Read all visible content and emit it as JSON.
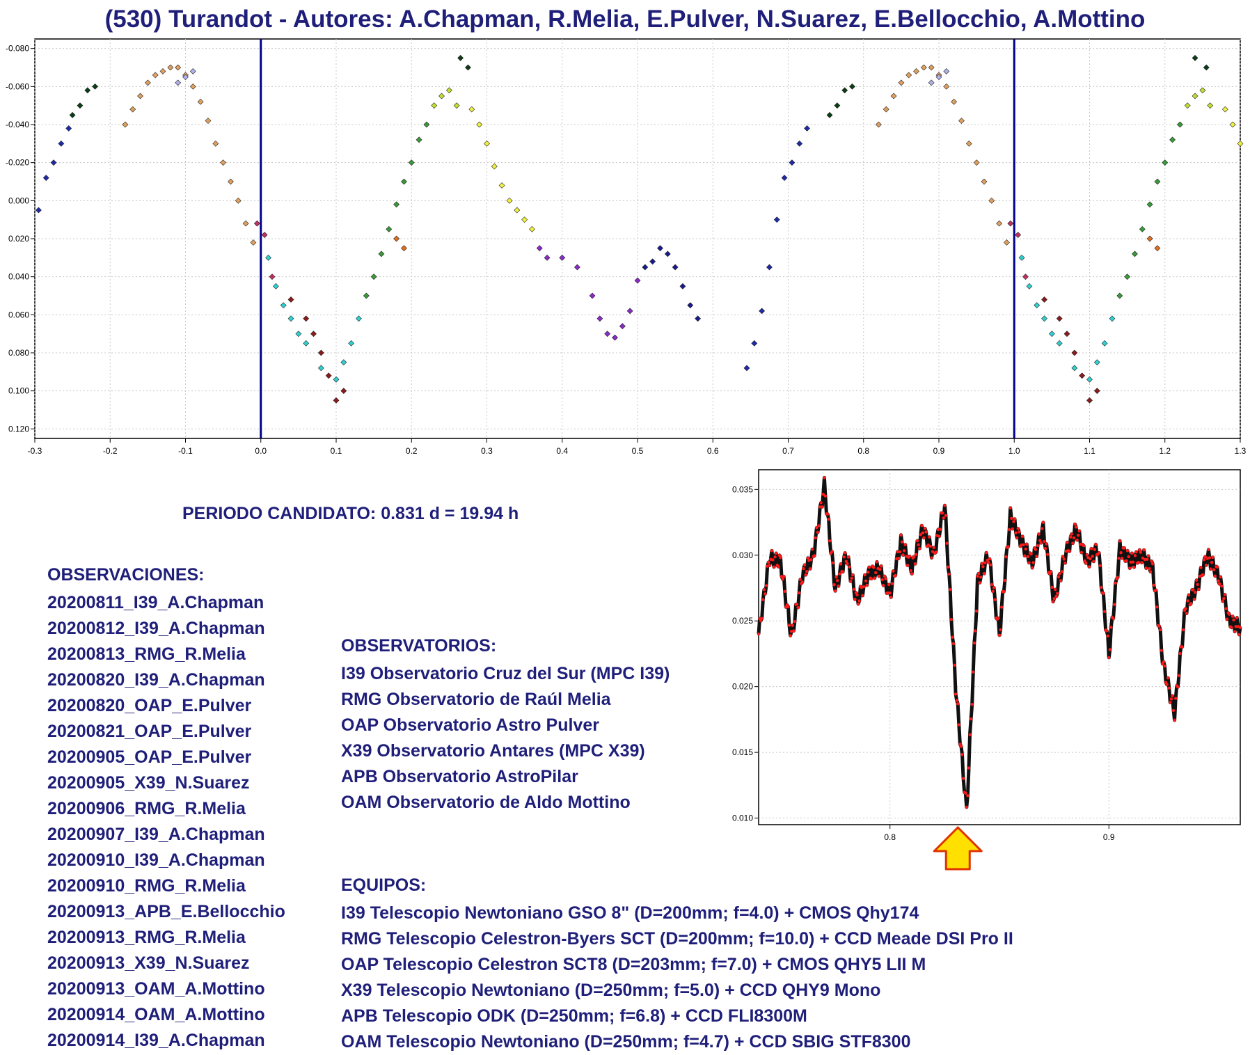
{
  "title": "(530) Turandot - Autores: A.Chapman, R.Melia, E.Pulver, N.Suarez, E.Bellocchio, A.Mottino",
  "period_text": "PERIODO CANDIDATO: 0.831 d = 19.94 h",
  "observaciones": {
    "heading": "OBSERVACIONES:",
    "items": [
      "20200811_I39_A.Chapman",
      "20200812_I39_A.Chapman",
      "20200813_RMG_R.Melia",
      "20200820_I39_A.Chapman",
      "20200820_OAP_E.Pulver",
      "20200821_OAP_E.Pulver",
      "20200905_OAP_E.Pulver",
      "20200905_X39_N.Suarez",
      "20200906_RMG_R.Melia",
      "20200907_I39_A.Chapman",
      "20200910_I39_A.Chapman",
      "20200910_RMG_R.Melia",
      "20200913_APB_E.Bellocchio",
      "20200913_RMG_R.Melia",
      "20200913_X39_N.Suarez",
      "20200913_OAM_A.Mottino",
      "20200914_OAM_A.Mottino",
      "20200914_I39_A.Chapman"
    ]
  },
  "observatorios": {
    "heading": "OBSERVATORIOS:",
    "items": [
      "I39 Observatorio Cruz del Sur (MPC I39)",
      "RMG Observatorio de Raúl Melia",
      "OAP Observatorio Astro Pulver",
      "X39 Observatorio Antares (MPC X39)",
      "APB Observatorio AstroPilar",
      "OAM Observatorio de Aldo Mottino"
    ]
  },
  "equipos": {
    "heading": "EQUIPOS:",
    "items": [
      "I39 Telescopio Newtoniano GSO 8\" (D=200mm; f=4.0) + CMOS Qhy174",
      "RMG Telescopio Celestron-Byers SCT (D=200mm; f=10.0) + CCD Meade DSI Pro II",
      "OAP Telescopio Celestron SCT8 (D=203mm; f=7.0) + CMOS QHY5 LII M",
      "X39 Telescopio Newtoniano (D=250mm; f=5.0) + CCD QHY9 Mono",
      "APB Telescopio ODK (D=250mm; f=6.8) + CCD FLI8300M",
      "OAM Telescopio Newtoniano (D=250mm; f=4.7) + CCD SBIG STF8300"
    ]
  },
  "colors": {
    "text": "#1f1f7a",
    "phase_line": "#00008b",
    "periodogram_line": "#b00000",
    "periodogram_point": "#ff1a1a",
    "arrow_fill": "#ffe000",
    "arrow_stroke": "#e03000"
  },
  "chart_data": [
    {
      "type": "scatter",
      "title": "",
      "xlabel": "",
      "ylabel": "",
      "xlim": [
        -0.3,
        1.3
      ],
      "ylim": [
        0.125,
        -0.085
      ],
      "y_inverted": true,
      "grid": true,
      "x_ticks": [
        "-0.3",
        "-0.2",
        "-0.1",
        "0.0",
        "0.1",
        "0.2",
        "0.3",
        "0.4",
        "0.5",
        "0.6",
        "0.7",
        "0.8",
        "0.9",
        "1.0",
        "1.1",
        "1.2",
        "1.3"
      ],
      "y_ticks": [
        "-0.080",
        "-0.060",
        "-0.040",
        "-0.020",
        "0.000",
        "0.020",
        "0.040",
        "0.060",
        "0.080",
        "0.100",
        "0.120"
      ],
      "vertical_lines": [
        0.0,
        1.0
      ],
      "series": [
        {
          "color": "#1f2aa8",
          "points": [
            [
              -0.295,
              0.005
            ],
            [
              -0.285,
              -0.012
            ],
            [
              -0.275,
              -0.02
            ],
            [
              -0.265,
              -0.03
            ],
            [
              -0.255,
              -0.038
            ],
            [
              0.645,
              0.088
            ],
            [
              0.655,
              0.075
            ],
            [
              0.665,
              0.058
            ],
            [
              0.675,
              0.035
            ],
            [
              0.685,
              0.01
            ],
            [
              0.695,
              -0.012
            ],
            [
              0.705,
              -0.02
            ],
            [
              0.715,
              -0.03
            ],
            [
              0.725,
              -0.038
            ]
          ]
        },
        {
          "color": "#0a3d14",
          "points": [
            [
              -0.25,
              -0.045
            ],
            [
              -0.24,
              -0.05
            ],
            [
              -0.23,
              -0.058
            ],
            [
              -0.22,
              -0.06
            ],
            [
              0.755,
              -0.045
            ],
            [
              0.765,
              -0.05
            ],
            [
              0.775,
              -0.058
            ],
            [
              0.785,
              -0.06
            ],
            [
              0.265,
              -0.075
            ],
            [
              0.275,
              -0.07
            ],
            [
              1.24,
              -0.075
            ],
            [
              1.255,
              -0.07
            ]
          ]
        },
        {
          "color": "#e0a060",
          "points": [
            [
              -0.18,
              -0.04
            ],
            [
              -0.17,
              -0.048
            ],
            [
              -0.16,
              -0.055
            ],
            [
              -0.15,
              -0.062
            ],
            [
              -0.14,
              -0.066
            ],
            [
              -0.13,
              -0.068
            ],
            [
              -0.12,
              -0.07
            ],
            [
              -0.11,
              -0.07
            ],
            [
              -0.1,
              -0.066
            ],
            [
              -0.09,
              -0.06
            ],
            [
              -0.08,
              -0.052
            ],
            [
              -0.07,
              -0.042
            ],
            [
              -0.06,
              -0.03
            ],
            [
              -0.05,
              -0.02
            ],
            [
              -0.04,
              -0.01
            ],
            [
              -0.03,
              0.0
            ],
            [
              -0.02,
              0.012
            ],
            [
              -0.01,
              0.022
            ],
            [
              0.82,
              -0.04
            ],
            [
              0.83,
              -0.048
            ],
            [
              0.84,
              -0.055
            ],
            [
              0.85,
              -0.062
            ],
            [
              0.86,
              -0.066
            ],
            [
              0.87,
              -0.068
            ],
            [
              0.88,
              -0.07
            ],
            [
              0.89,
              -0.07
            ],
            [
              0.9,
              -0.066
            ],
            [
              0.91,
              -0.06
            ],
            [
              0.92,
              -0.052
            ],
            [
              0.93,
              -0.042
            ],
            [
              0.94,
              -0.03
            ],
            [
              0.95,
              -0.02
            ],
            [
              0.96,
              -0.01
            ],
            [
              0.97,
              0.0
            ],
            [
              0.98,
              0.012
            ],
            [
              0.99,
              0.022
            ]
          ]
        },
        {
          "color": "#b0b0e8",
          "points": [
            [
              -0.11,
              -0.062
            ],
            [
              -0.1,
              -0.065
            ],
            [
              -0.09,
              -0.068
            ],
            [
              0.89,
              -0.062
            ],
            [
              0.9,
              -0.065
            ],
            [
              0.91,
              -0.068
            ]
          ]
        },
        {
          "color": "#30d0d0",
          "points": [
            [
              0.01,
              0.03
            ],
            [
              0.02,
              0.045
            ],
            [
              0.03,
              0.055
            ],
            [
              0.04,
              0.062
            ],
            [
              0.05,
              0.07
            ],
            [
              0.06,
              0.075
            ],
            [
              0.08,
              0.088
            ],
            [
              0.1,
              0.094
            ],
            [
              0.11,
              0.085
            ],
            [
              0.12,
              0.075
            ],
            [
              0.13,
              0.062
            ],
            [
              1.01,
              0.03
            ],
            [
              1.02,
              0.045
            ],
            [
              1.03,
              0.055
            ],
            [
              1.04,
              0.062
            ],
            [
              1.05,
              0.07
            ],
            [
              1.06,
              0.075
            ],
            [
              1.08,
              0.088
            ],
            [
              1.1,
              0.094
            ],
            [
              1.11,
              0.085
            ],
            [
              1.12,
              0.075
            ],
            [
              1.13,
              0.062
            ]
          ]
        },
        {
          "color": "#8b1a1a",
          "points": [
            [
              0.04,
              0.052
            ],
            [
              0.06,
              0.062
            ],
            [
              0.07,
              0.07
            ],
            [
              0.08,
              0.08
            ],
            [
              0.09,
              0.092
            ],
            [
              0.1,
              0.105
            ],
            [
              0.11,
              0.1
            ],
            [
              1.04,
              0.052
            ],
            [
              1.06,
              0.062
            ],
            [
              1.07,
              0.07
            ],
            [
              1.08,
              0.08
            ],
            [
              1.09,
              0.092
            ],
            [
              1.1,
              0.105
            ],
            [
              1.11,
              0.1
            ]
          ]
        },
        {
          "color": "#3a9a3a",
          "points": [
            [
              0.14,
              0.05
            ],
            [
              0.15,
              0.04
            ],
            [
              0.16,
              0.028
            ],
            [
              0.17,
              0.015
            ],
            [
              0.18,
              0.002
            ],
            [
              0.19,
              -0.01
            ],
            [
              0.2,
              -0.02
            ],
            [
              0.21,
              -0.032
            ],
            [
              0.22,
              -0.04
            ],
            [
              1.14,
              0.05
            ],
            [
              1.15,
              0.04
            ],
            [
              1.16,
              0.028
            ],
            [
              1.17,
              0.015
            ],
            [
              1.18,
              0.002
            ],
            [
              1.19,
              -0.01
            ],
            [
              1.2,
              -0.02
            ],
            [
              1.21,
              -0.032
            ],
            [
              1.22,
              -0.04
            ]
          ]
        },
        {
          "color": "#c0e030",
          "points": [
            [
              0.23,
              -0.05
            ],
            [
              0.24,
              -0.055
            ],
            [
              0.25,
              -0.058
            ],
            [
              0.26,
              -0.05
            ],
            [
              1.23,
              -0.05
            ],
            [
              1.24,
              -0.055
            ],
            [
              1.25,
              -0.058
            ],
            [
              1.26,
              -0.05
            ]
          ]
        },
        {
          "color": "#f0f040",
          "points": [
            [
              0.28,
              -0.048
            ],
            [
              0.29,
              -0.04
            ],
            [
              0.3,
              -0.03
            ],
            [
              0.31,
              -0.018
            ],
            [
              0.32,
              -0.008
            ],
            [
              0.33,
              0.0
            ],
            [
              0.34,
              0.005
            ],
            [
              0.35,
              0.01
            ],
            [
              0.36,
              0.015
            ],
            [
              1.28,
              -0.048
            ],
            [
              1.29,
              -0.04
            ],
            [
              1.3,
              -0.03
            ]
          ]
        },
        {
          "color": "#8a2ac8",
          "points": [
            [
              0.37,
              0.025
            ],
            [
              0.38,
              0.03
            ],
            [
              0.4,
              0.03
            ],
            [
              0.42,
              0.035
            ],
            [
              0.44,
              0.05
            ],
            [
              0.45,
              0.062
            ],
            [
              0.46,
              0.07
            ],
            [
              0.47,
              0.072
            ],
            [
              0.48,
              0.066
            ],
            [
              0.49,
              0.058
            ],
            [
              0.5,
              0.042
            ]
          ]
        },
        {
          "color": "#1a1a90",
          "points": [
            [
              0.51,
              0.035
            ],
            [
              0.52,
              0.032
            ],
            [
              0.53,
              0.025
            ],
            [
              0.54,
              0.028
            ],
            [
              0.55,
              0.035
            ],
            [
              0.56,
              0.045
            ],
            [
              0.57,
              0.055
            ],
            [
              0.58,
              0.062
            ]
          ]
        },
        {
          "color": "#c03060",
          "points": [
            [
              -0.005,
              0.012
            ],
            [
              0.005,
              0.018
            ],
            [
              0.015,
              0.04
            ],
            [
              0.995,
              0.012
            ],
            [
              1.005,
              0.018
            ],
            [
              1.015,
              0.04
            ]
          ]
        },
        {
          "color": "#e07020",
          "points": [
            [
              0.18,
              0.02
            ],
            [
              0.19,
              0.025
            ],
            [
              1.18,
              0.02
            ],
            [
              1.19,
              0.025
            ]
          ]
        }
      ]
    },
    {
      "type": "line",
      "title": "",
      "xlabel": "",
      "ylabel": "",
      "xlim": [
        0.74,
        0.96
      ],
      "ylim": [
        0.0095,
        0.0365
      ],
      "grid": true,
      "x_ticks": [
        "0.8",
        "0.9"
      ],
      "y_ticks": [
        "0.010",
        "0.015",
        "0.020",
        "0.025",
        "0.030",
        "0.035"
      ],
      "marked_period": 0.831,
      "x": [
        0.74,
        0.745,
        0.75,
        0.755,
        0.76,
        0.765,
        0.77,
        0.775,
        0.78,
        0.785,
        0.79,
        0.795,
        0.8,
        0.805,
        0.81,
        0.815,
        0.82,
        0.825,
        0.83,
        0.835,
        0.84,
        0.845,
        0.85,
        0.855,
        0.86,
        0.865,
        0.87,
        0.875,
        0.88,
        0.885,
        0.89,
        0.895,
        0.9,
        0.905,
        0.91,
        0.915,
        0.92,
        0.925,
        0.93,
        0.935,
        0.94,
        0.945,
        0.95,
        0.955,
        0.96
      ],
      "values": [
        0.024,
        0.0298,
        0.0295,
        0.0238,
        0.0285,
        0.03,
        0.0353,
        0.0275,
        0.03,
        0.0265,
        0.0285,
        0.029,
        0.027,
        0.031,
        0.029,
        0.032,
        0.03,
        0.0338,
        0.02,
        0.0105,
        0.028,
        0.03,
        0.024,
        0.033,
        0.031,
        0.0295,
        0.032,
        0.0265,
        0.03,
        0.032,
        0.0295,
        0.0305,
        0.0225,
        0.0305,
        0.0295,
        0.03,
        0.029,
        0.0215,
        0.018,
        0.026,
        0.0275,
        0.03,
        0.0285,
        0.025,
        0.0245
      ]
    }
  ]
}
